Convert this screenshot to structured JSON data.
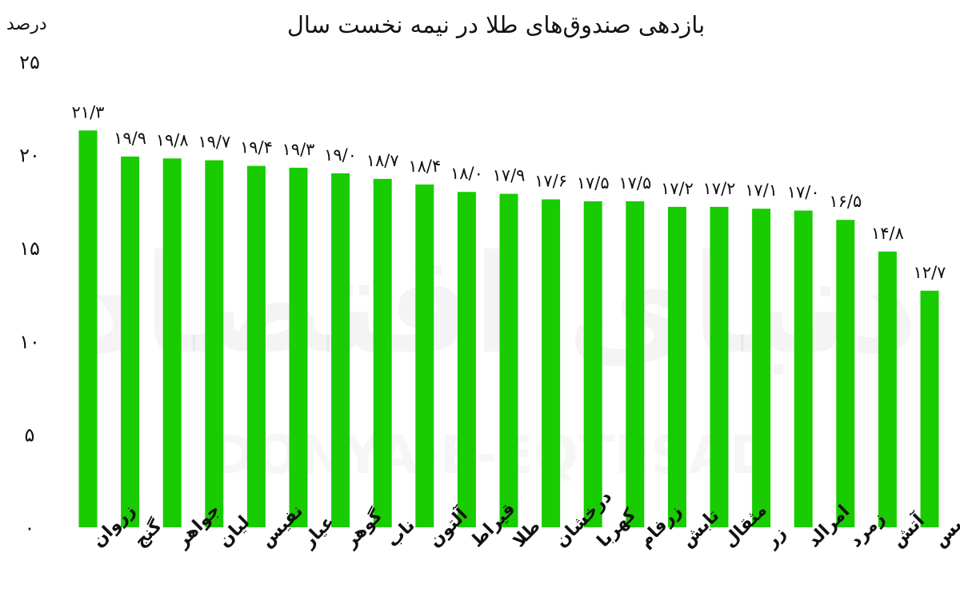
{
  "chart_data": {
    "type": "bar",
    "title": "بازدهی صندوق‌های طلا در نیمه نخست سال",
    "ylabel": "درصد",
    "xlabel": "",
    "ylim": [
      0,
      25
    ],
    "yticks": [
      0,
      5,
      10,
      15,
      20,
      25
    ],
    "ytick_labels": [
      "۰",
      "۵",
      "۱۰",
      "۱۵",
      "۲۰",
      "۲۵"
    ],
    "grid": false,
    "bar_color": "#18cc00",
    "categories": [
      "زروان",
      "گنج",
      "جواهر",
      "لیان",
      "نفیس",
      "عیار",
      "گوهر",
      "ناب",
      "آلتون",
      "قیراط",
      "طلا",
      "درخشان",
      "کهربا",
      "زرفام",
      "تابش",
      "مثقال",
      "زر",
      "امرالد",
      "زمرد",
      "آتش",
      "گلدیس"
    ],
    "values": [
      21.3,
      19.9,
      19.8,
      19.7,
      19.4,
      19.3,
      19.0,
      18.7,
      18.4,
      18.0,
      17.9,
      17.6,
      17.5,
      17.5,
      17.2,
      17.2,
      17.1,
      17.0,
      16.5,
      14.8,
      12.7
    ],
    "data_labels": [
      "۲۱/۳",
      "۱۹/۹",
      "۱۹/۸",
      "۱۹/۷",
      "۱۹/۴",
      "۱۹/۳",
      "۱۹/۰",
      "۱۸/۷",
      "۱۸/۴",
      "۱۸/۰",
      "۱۷/۹",
      "۱۷/۶",
      "۱۷/۵",
      "۱۷/۵",
      "۱۷/۲",
      "۱۷/۲",
      "۱۷/۱",
      "۱۷/۰",
      "۱۶/۵",
      "۱۴/۸",
      "۱۲/۷"
    ]
  },
  "watermark": {
    "persian": "دنیای اقتصاد",
    "latin": "DONYA-E-EQTESAD"
  }
}
